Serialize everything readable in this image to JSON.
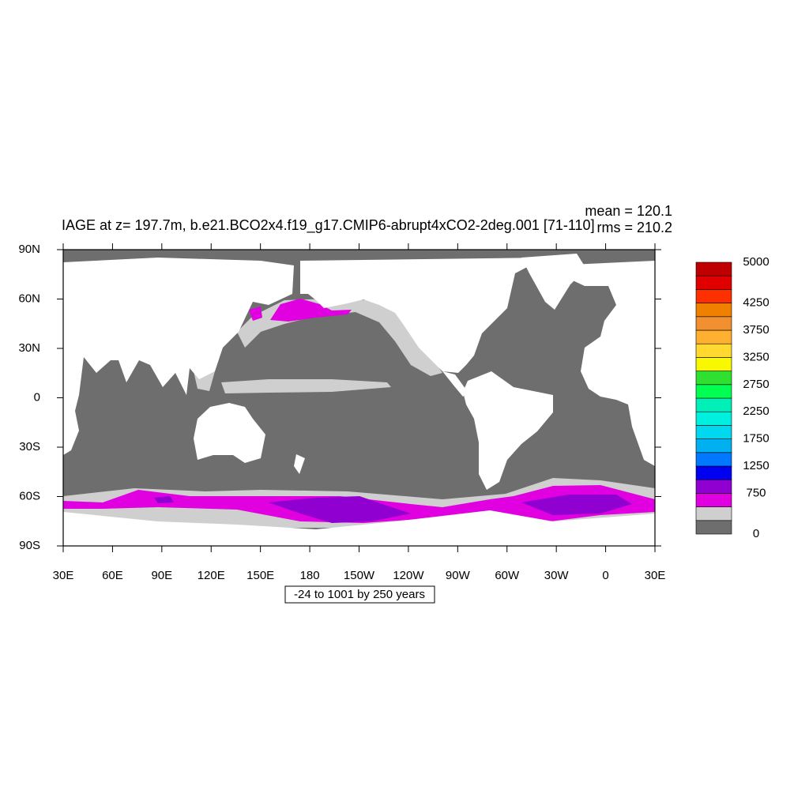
{
  "chart_data": {
    "type": "map",
    "title": "IAGE at z= 197.7m, b.e21.BCO2x4.f19_g17.CMIP6-abrupt4xCO2-2deg.001 [71-110]",
    "annotations": [
      "mean = 120.1",
      "rms = 210.2"
    ],
    "subtitle": "-24 to 1001 by 250 years",
    "xlim": [
      30,
      390
    ],
    "xticks": [
      {
        "value": 30,
        "label": "30E"
      },
      {
        "value": 60,
        "label": "60E"
      },
      {
        "value": 90,
        "label": "90E"
      },
      {
        "value": 120,
        "label": "120E"
      },
      {
        "value": 150,
        "label": "150E"
      },
      {
        "value": 180,
        "label": "180"
      },
      {
        "value": 210,
        "label": "150W"
      },
      {
        "value": 240,
        "label": "120W"
      },
      {
        "value": 270,
        "label": "90W"
      },
      {
        "value": 300,
        "label": "60W"
      },
      {
        "value": 330,
        "label": "30W"
      },
      {
        "value": 360,
        "label": "0"
      },
      {
        "value": 390,
        "label": "30E"
      }
    ],
    "ylim": [
      -90,
      90
    ],
    "yticks": [
      {
        "value": 90,
        "label": "90N"
      },
      {
        "value": 60,
        "label": "60N"
      },
      {
        "value": 30,
        "label": "30N"
      },
      0,
      {
        "value": -30,
        "label": "30S"
      },
      {
        "value": -60,
        "label": "60S"
      },
      {
        "value": -90,
        "label": "90S"
      }
    ],
    "colorbar": {
      "range": [
        0,
        5000
      ],
      "ticks": [
        0,
        750,
        1250,
        1750,
        2250,
        2750,
        3250,
        3750,
        4250,
        5000
      ],
      "colors": [
        "#6e6e6e",
        "#cfcfcf",
        "#e000e0",
        "#9000d0",
        "#0000f0",
        "#0078ff",
        "#00b0f0",
        "#00d8f0",
        "#00f0e0",
        "#00f0b8",
        "#00ff50",
        "#30e030",
        "#f8f800",
        "#ffd830",
        "#ffb030",
        "#f09030",
        "#f08000",
        "#ff3000",
        "#e00000",
        "#c00000"
      ]
    }
  }
}
